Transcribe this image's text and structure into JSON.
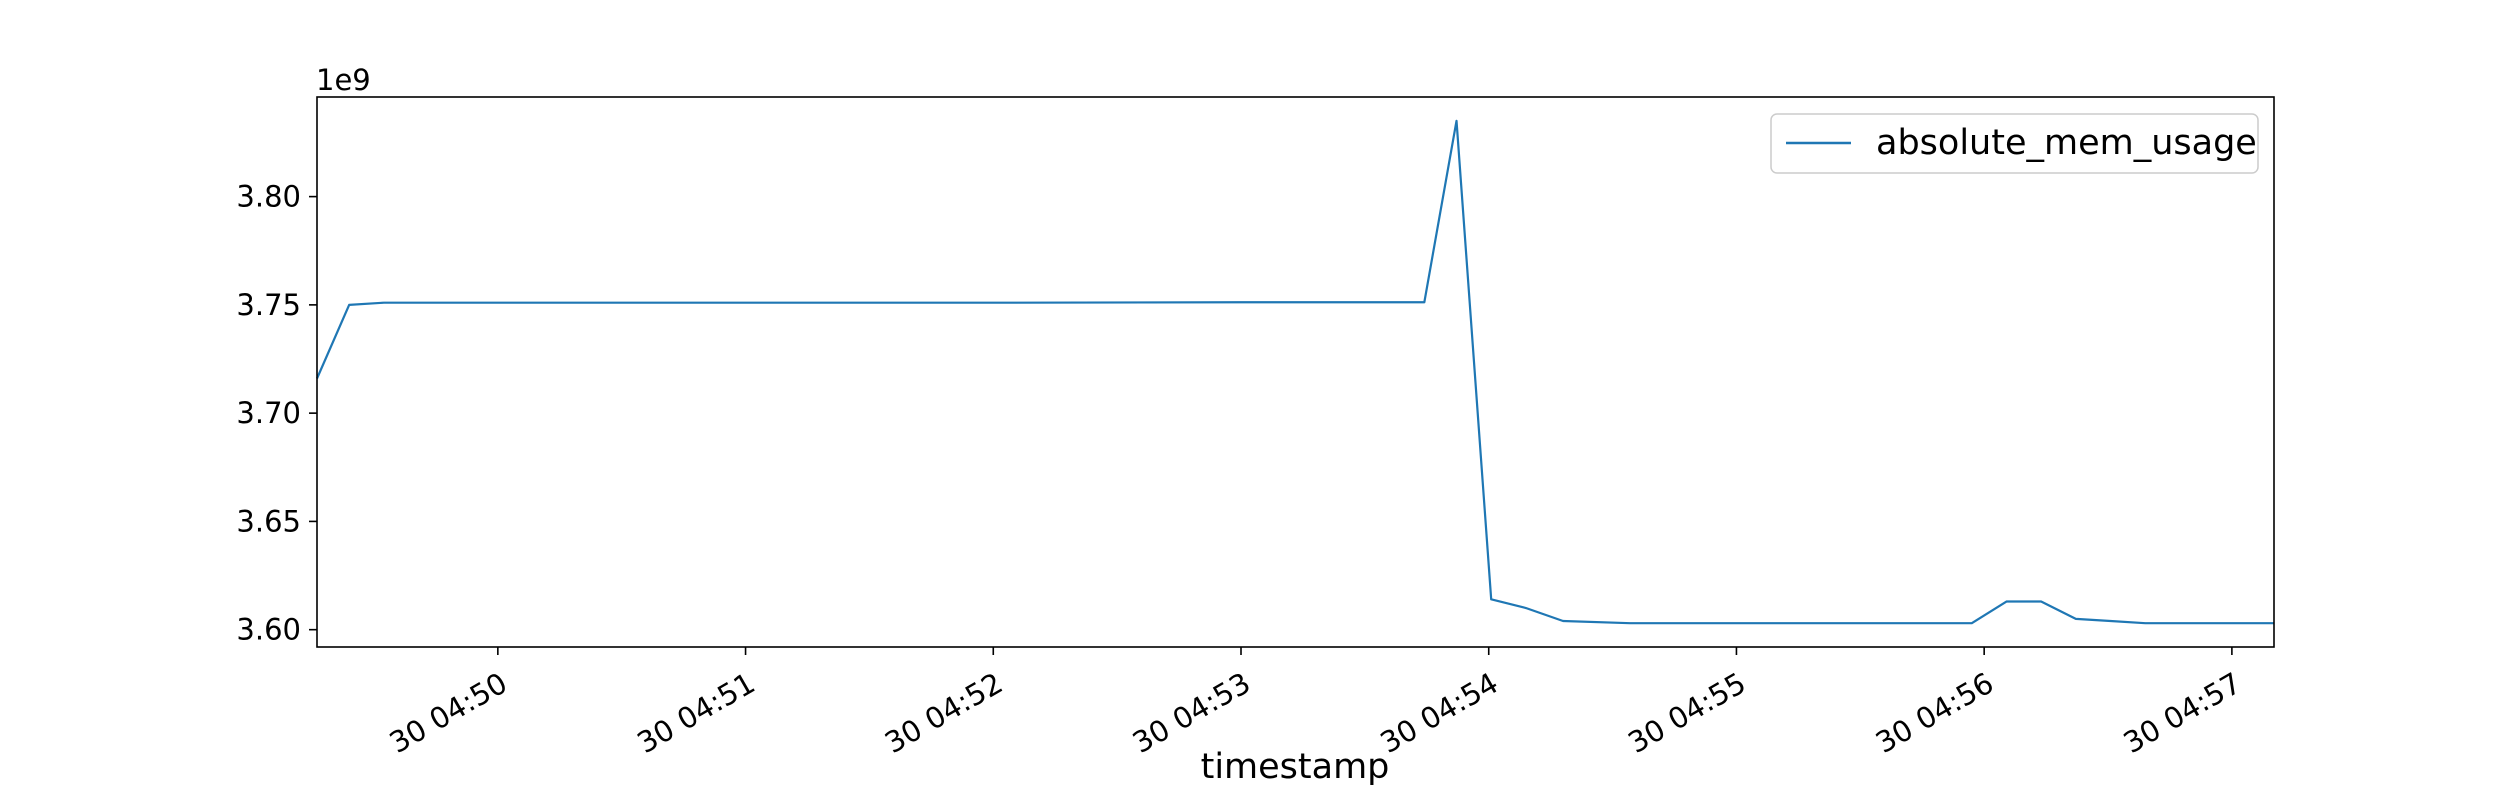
{
  "chart_data": {
    "type": "line",
    "title": "",
    "xlabel": "timestamp",
    "ylabel": "",
    "y_offset_label": "1e9",
    "x_tick_labels": [
      "30 04:50",
      "30 04:51",
      "30 04:52",
      "30 04:53",
      "30 04:54",
      "30 04:55",
      "30 04:56",
      "30 04:57"
    ],
    "x_tick_minutes": [
      50,
      51,
      52,
      53,
      54,
      55,
      56,
      57
    ],
    "y_ticks": [
      3.6,
      3.65,
      3.7,
      3.75,
      3.8
    ],
    "y_tick_labels": [
      "3.60",
      "3.65",
      "3.70",
      "3.75",
      "3.80"
    ],
    "xlim_minutes": [
      49.27,
      57.17
    ],
    "ylim": [
      3.592,
      3.846
    ],
    "grid": false,
    "legend_position": "top-right",
    "line_color": "#1f77b4",
    "series": [
      {
        "name": "absolute_mem_usage",
        "points": [
          [
            49.27,
            3.716
          ],
          [
            49.4,
            3.75
          ],
          [
            49.54,
            3.751
          ],
          [
            50.0,
            3.751
          ],
          [
            51.0,
            3.751
          ],
          [
            52.0,
            3.751
          ],
          [
            53.0,
            3.7512
          ],
          [
            53.6,
            3.7512
          ],
          [
            53.74,
            3.7512
          ],
          [
            53.87,
            3.835
          ],
          [
            54.01,
            3.614
          ],
          [
            54.15,
            3.61
          ],
          [
            54.3,
            3.604
          ],
          [
            54.57,
            3.603
          ],
          [
            55.0,
            3.603
          ],
          [
            55.5,
            3.603
          ],
          [
            55.95,
            3.603
          ],
          [
            56.09,
            3.613
          ],
          [
            56.23,
            3.613
          ],
          [
            56.37,
            3.605
          ],
          [
            56.51,
            3.604
          ],
          [
            56.65,
            3.603
          ],
          [
            57.17,
            3.603
          ]
        ]
      }
    ]
  }
}
